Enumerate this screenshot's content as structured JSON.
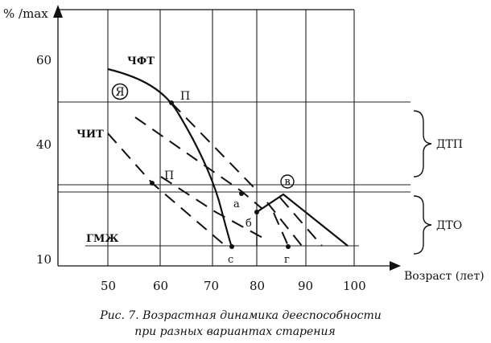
{
  "axes": {
    "y_label": "% /max",
    "y_ticks": [
      "60",
      "40",
      "10"
    ],
    "x_label": "Возраст (лет)",
    "x_ticks": [
      "50",
      "60",
      "70",
      "80",
      "90",
      "100"
    ]
  },
  "curves": {
    "chft": "ЧФТ",
    "chit": "ЧИТ",
    "gmzh": "ГМЖ"
  },
  "markers": {
    "ya": "Я",
    "v": "в",
    "p_upper": "П",
    "p_lower": "П",
    "a": "а",
    "b": "б",
    "c": "с",
    "g": "г"
  },
  "zones": {
    "dtp": "ДТП",
    "dto": "ДТО"
  },
  "caption": {
    "line1": "Рис. 7. Возрастная динамика дееспособности",
    "line2": "при разных вариантах старения"
  }
}
